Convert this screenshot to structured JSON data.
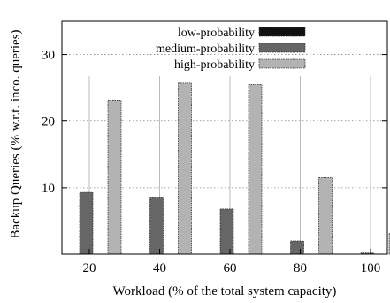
{
  "chart_data": {
    "type": "bar",
    "categories": [
      "20",
      "40",
      "60",
      "80",
      "100"
    ],
    "series": [
      {
        "name": "low-probability",
        "values": [
          0,
          0,
          0,
          0,
          0
        ],
        "color": "#111111"
      },
      {
        "name": "medium-probability",
        "values": [
          9.3,
          8.6,
          6.8,
          2.0,
          0.3
        ],
        "color": "#666666"
      },
      {
        "name": "high-probability",
        "values": [
          23.1,
          25.7,
          25.5,
          11.5,
          3.1
        ],
        "color": "#b3b3b3"
      }
    ],
    "xlabel": "Workload (% of the total system capacity)",
    "ylabel": "Backup Queries (% w.r.t. inco. queries)",
    "ylim": [
      0,
      35
    ],
    "yticks": [
      10,
      20,
      30
    ],
    "legend_position": "top-right",
    "grid": "dotted horizontal, solid vertical"
  }
}
